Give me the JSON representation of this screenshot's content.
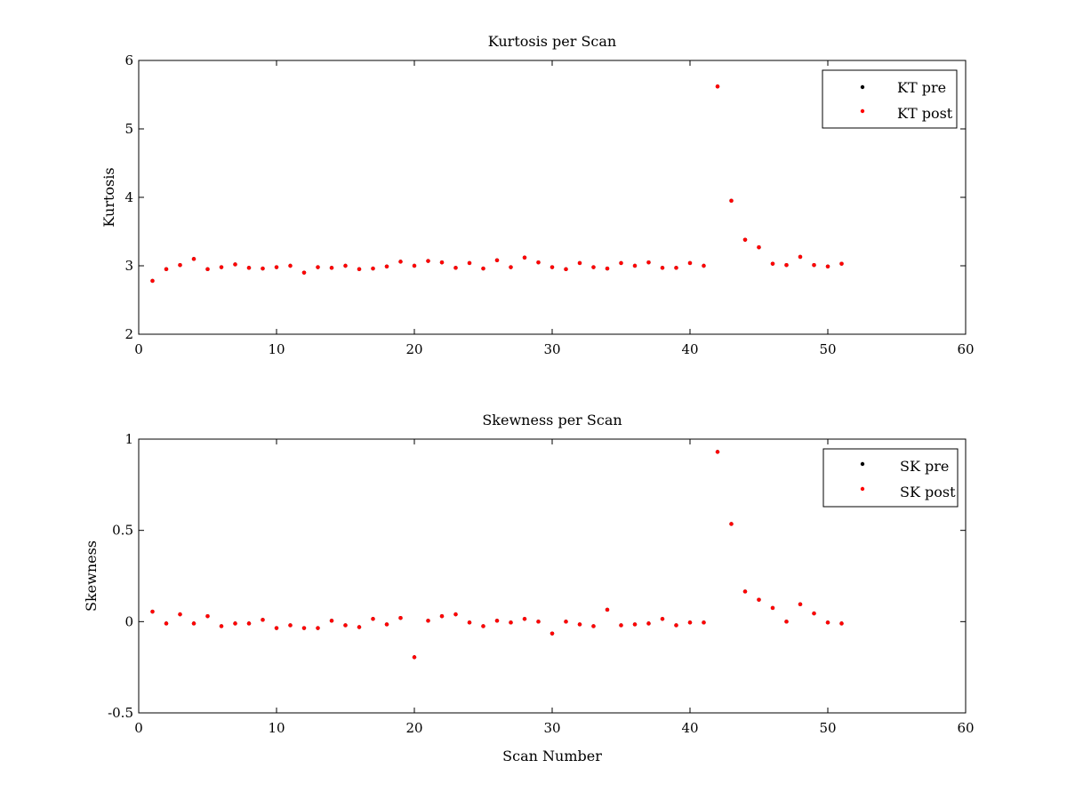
{
  "chart_data": [
    {
      "type": "scatter",
      "title": "Kurtosis per Scan",
      "xlabel": "",
      "ylabel": "Kurtosis",
      "xlim": [
        0,
        60
      ],
      "ylim": [
        2,
        6
      ],
      "xticks": [
        0,
        10,
        20,
        30,
        40,
        50,
        60
      ],
      "yticks": [
        2,
        3,
        4,
        5,
        6
      ],
      "grid": false,
      "legend_position": "top-right",
      "series": [
        {
          "name": "KT pre",
          "color": "#000000",
          "x": [
            1,
            2,
            3,
            4,
            5,
            6,
            7,
            8,
            9,
            10,
            11,
            12,
            13,
            14,
            15,
            16,
            17,
            18,
            19,
            20,
            21,
            22,
            23,
            24,
            25,
            26,
            27,
            28,
            29,
            30,
            31,
            32,
            33,
            34,
            35,
            36,
            37,
            38,
            39,
            40,
            41,
            42,
            43,
            44,
            45,
            46,
            47,
            48,
            49,
            50,
            51
          ],
          "y": [
            2.78,
            2.95,
            3.01,
            3.1,
            2.95,
            2.98,
            3.02,
            2.97,
            2.96,
            2.98,
            3.0,
            2.9,
            2.98,
            2.97,
            3.0,
            2.95,
            2.96,
            2.99,
            3.06,
            3.0,
            3.07,
            3.05,
            2.97,
            3.04,
            2.96,
            3.08,
            2.98,
            3.12,
            3.05,
            2.98,
            2.95,
            3.04,
            2.98,
            2.96,
            3.04,
            3.0,
            3.05,
            2.97,
            2.97,
            3.04,
            3.0,
            5.62,
            3.95,
            3.38,
            3.27,
            3.03,
            3.01,
            3.13,
            3.01,
            2.99,
            3.03
          ]
        },
        {
          "name": "KT post",
          "color": "#ff0000",
          "x": [
            1,
            2,
            3,
            4,
            5,
            6,
            7,
            8,
            9,
            10,
            11,
            12,
            13,
            14,
            15,
            16,
            17,
            18,
            19,
            20,
            21,
            22,
            23,
            24,
            25,
            26,
            27,
            28,
            29,
            30,
            31,
            32,
            33,
            34,
            35,
            36,
            37,
            38,
            39,
            40,
            41,
            42,
            43,
            44,
            45,
            46,
            47,
            48,
            49,
            50,
            51
          ],
          "y": [
            2.78,
            2.95,
            3.01,
            3.1,
            2.95,
            2.98,
            3.02,
            2.97,
            2.96,
            2.98,
            3.0,
            2.9,
            2.98,
            2.97,
            3.0,
            2.95,
            2.96,
            2.99,
            3.06,
            3.0,
            3.07,
            3.05,
            2.97,
            3.04,
            2.96,
            3.08,
            2.98,
            3.12,
            3.05,
            2.98,
            2.95,
            3.04,
            2.98,
            2.96,
            3.04,
            3.0,
            3.05,
            2.97,
            2.97,
            3.04,
            3.0,
            5.62,
            3.95,
            3.38,
            3.27,
            3.03,
            3.01,
            3.13,
            3.01,
            2.99,
            3.03
          ]
        }
      ]
    },
    {
      "type": "scatter",
      "title": "Skewness per Scan",
      "xlabel": "Scan Number",
      "ylabel": "Skewness",
      "xlim": [
        0,
        60
      ],
      "ylim": [
        -0.5,
        1
      ],
      "xticks": [
        0,
        10,
        20,
        30,
        40,
        50,
        60
      ],
      "yticks": [
        -0.5,
        0,
        0.5,
        1
      ],
      "ytick_labels": [
        "-0.5",
        "0",
        "0.5",
        "1"
      ],
      "grid": false,
      "legend_position": "top-right",
      "series": [
        {
          "name": "SK pre",
          "color": "#000000",
          "x": [
            1,
            2,
            3,
            4,
            5,
            6,
            7,
            8,
            9,
            10,
            11,
            12,
            13,
            14,
            15,
            16,
            17,
            18,
            19,
            20,
            21,
            22,
            23,
            24,
            25,
            26,
            27,
            28,
            29,
            30,
            31,
            32,
            33,
            34,
            35,
            36,
            37,
            38,
            39,
            40,
            41,
            42,
            43,
            44,
            45,
            46,
            47,
            48,
            49,
            50,
            51
          ],
          "y": [
            0.055,
            -0.01,
            0.04,
            -0.01,
            0.03,
            -0.025,
            -0.01,
            -0.01,
            0.01,
            -0.035,
            -0.02,
            -0.035,
            -0.035,
            0.005,
            -0.02,
            -0.03,
            0.015,
            -0.015,
            0.02,
            -0.195,
            0.005,
            0.03,
            0.04,
            -0.005,
            -0.025,
            0.005,
            -0.005,
            0.015,
            0.0,
            -0.065,
            0.0,
            -0.015,
            -0.025,
            0.065,
            -0.02,
            -0.015,
            -0.01,
            0.015,
            -0.02,
            -0.005,
            -0.005,
            0.93,
            0.535,
            0.165,
            0.12,
            0.075,
            0.0,
            0.095,
            0.045,
            -0.005,
            -0.01
          ]
        },
        {
          "name": "SK post",
          "color": "#ff0000",
          "x": [
            1,
            2,
            3,
            4,
            5,
            6,
            7,
            8,
            9,
            10,
            11,
            12,
            13,
            14,
            15,
            16,
            17,
            18,
            19,
            20,
            21,
            22,
            23,
            24,
            25,
            26,
            27,
            28,
            29,
            30,
            31,
            32,
            33,
            34,
            35,
            36,
            37,
            38,
            39,
            40,
            41,
            42,
            43,
            44,
            45,
            46,
            47,
            48,
            49,
            50,
            51
          ],
          "y": [
            0.055,
            -0.01,
            0.04,
            -0.01,
            0.03,
            -0.025,
            -0.01,
            -0.01,
            0.01,
            -0.035,
            -0.02,
            -0.035,
            -0.035,
            0.005,
            -0.02,
            -0.03,
            0.015,
            -0.015,
            0.02,
            -0.195,
            0.005,
            0.03,
            0.04,
            -0.005,
            -0.025,
            0.005,
            -0.005,
            0.015,
            0.0,
            -0.065,
            0.0,
            -0.015,
            -0.025,
            0.065,
            -0.02,
            -0.015,
            -0.01,
            0.015,
            -0.02,
            -0.005,
            -0.005,
            0.93,
            0.535,
            0.165,
            0.12,
            0.075,
            0.0,
            0.095,
            0.045,
            -0.005,
            -0.01
          ]
        }
      ]
    }
  ]
}
